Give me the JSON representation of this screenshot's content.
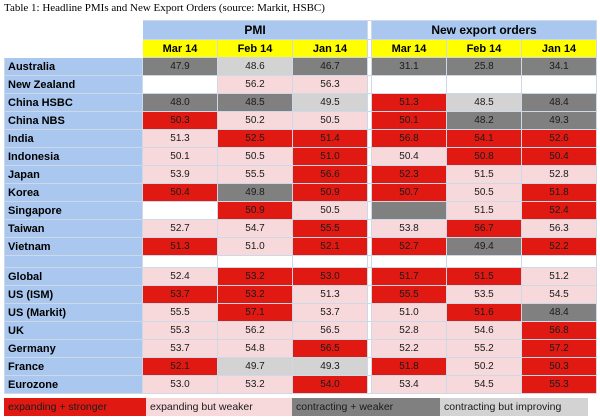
{
  "caption": "Table 1: Headline PMIs and New Export Orders (source: Markit, HSBC)",
  "groups": {
    "pmi": "PMI",
    "exports": "New export orders"
  },
  "columns": [
    "Mar 14",
    "Feb 14",
    "Jan 14",
    "Mar 14",
    "Feb 14",
    "Jan 14"
  ],
  "colors": {
    "expanding_stronger": "#e01a12",
    "expanding_weaker": "#f7d9dc",
    "contracting_weaker": "#808080",
    "contracting_improving": "#d3d3d3",
    "header_blue": "#a9c7ef",
    "header_yellow": "#ffff00"
  },
  "rows": [
    {
      "name": "Australia",
      "values": [
        "47.9",
        "48.6",
        "46.7",
        "31.1",
        "25.8",
        "34.1"
      ],
      "styles": [
        "cs",
        "ci",
        "cs",
        "cs",
        "cs",
        "cs"
      ]
    },
    {
      "name": "New Zealand",
      "values": [
        "",
        "56.2",
        "56.3",
        "",
        "",
        ""
      ],
      "styles": [
        "na",
        "ew",
        "ew",
        "na",
        "na",
        "na"
      ]
    },
    {
      "name": "China HSBC",
      "values": [
        "48.0",
        "48.5",
        "49.5",
        "51.3",
        "48.5",
        "48.4"
      ],
      "styles": [
        "cs",
        "cs",
        "ci",
        "es",
        "ci",
        "cs"
      ]
    },
    {
      "name": "China NBS",
      "values": [
        "50.3",
        "50.2",
        "50.5",
        "50.1",
        "48.2",
        "49.3"
      ],
      "styles": [
        "es",
        "ew",
        "ew",
        "es",
        "cs",
        "cs"
      ]
    },
    {
      "name": "India",
      "values": [
        "51.3",
        "52.5",
        "51.4",
        "56.8",
        "54.1",
        "52.6"
      ],
      "styles": [
        "ew",
        "es",
        "es",
        "es",
        "es",
        "es"
      ]
    },
    {
      "name": "Indonesia",
      "values": [
        "50.1",
        "50.5",
        "51.0",
        "50.4",
        "50.8",
        "50.4"
      ],
      "styles": [
        "ew",
        "ew",
        "es",
        "ew",
        "es",
        "es"
      ]
    },
    {
      "name": "Japan",
      "values": [
        "53.9",
        "55.5",
        "56.6",
        "52.3",
        "51.5",
        "52.8"
      ],
      "styles": [
        "ew",
        "ew",
        "es",
        "es",
        "ew",
        "ew"
      ]
    },
    {
      "name": "Korea",
      "values": [
        "50.4",
        "49.8",
        "50.9",
        "50.7",
        "50.5",
        "51.8"
      ],
      "styles": [
        "es",
        "cs",
        "es",
        "es",
        "ew",
        "es"
      ]
    },
    {
      "name": "Singapore",
      "values": [
        "",
        "50.9",
        "50.5",
        "",
        "51.5",
        "52.4"
      ],
      "styles": [
        "na",
        "es",
        "ew",
        "cs",
        "ew",
        "es"
      ]
    },
    {
      "name": "Taiwan",
      "values": [
        "52.7",
        "54.7",
        "55.5",
        "53.8",
        "56.7",
        "56.3"
      ],
      "styles": [
        "ew",
        "ew",
        "es",
        "ew",
        "es",
        "ew"
      ]
    },
    {
      "name": "Vietnam",
      "values": [
        "51.3",
        "51.0",
        "52.1",
        "52.7",
        "49.4",
        "52.2"
      ],
      "styles": [
        "es",
        "ew",
        "es",
        "es",
        "cs",
        "es"
      ]
    },
    {
      "name": "",
      "values": [
        "",
        "",
        "",
        "",
        "",
        ""
      ],
      "styles": [
        "na",
        "na",
        "na",
        "na",
        "na",
        "na"
      ],
      "spacer": true
    },
    {
      "name": "Global",
      "values": [
        "52.4",
        "53.2",
        "53.0",
        "51.7",
        "51.5",
        "51.2"
      ],
      "styles": [
        "ew",
        "es",
        "es",
        "es",
        "es",
        "ew"
      ]
    },
    {
      "name": "US (ISM)",
      "values": [
        "53.7",
        "53.2",
        "51.3",
        "55.5",
        "53.5",
        "54.5"
      ],
      "styles": [
        "es",
        "es",
        "ew",
        "es",
        "ew",
        "ew"
      ]
    },
    {
      "name": "US (Markit)",
      "values": [
        "55.5",
        "57.1",
        "53.7",
        "51.0",
        "51.6",
        "48.4"
      ],
      "styles": [
        "ew",
        "es",
        "ew",
        "ew",
        "es",
        "cs"
      ]
    },
    {
      "name": "UK",
      "values": [
        "55.3",
        "56.2",
        "56.5",
        "52.8",
        "54.6",
        "56.8"
      ],
      "styles": [
        "ew",
        "ew",
        "ew",
        "ew",
        "ew",
        "es"
      ]
    },
    {
      "name": "Germany",
      "values": [
        "53.7",
        "54.8",
        "56.5",
        "52.2",
        "55.2",
        "57.2"
      ],
      "styles": [
        "ew",
        "ew",
        "es",
        "ew",
        "ew",
        "es"
      ]
    },
    {
      "name": "France",
      "values": [
        "52.1",
        "49.7",
        "49.3",
        "51.8",
        "50.2",
        "50.3"
      ],
      "styles": [
        "es",
        "ci",
        "ci",
        "es",
        "ew",
        "es"
      ]
    },
    {
      "name": "Eurozone",
      "values": [
        "53.0",
        "53.2",
        "54.0",
        "53.4",
        "54.5",
        "55.3"
      ],
      "styles": [
        "ew",
        "ew",
        "es",
        "ew",
        "ew",
        "es"
      ]
    }
  ],
  "legend": [
    {
      "label": "expanding + stronger",
      "style": "es"
    },
    {
      "label": "expanding but weaker",
      "style": "ew"
    },
    {
      "label": "contracting + weaker",
      "style": "cs"
    },
    {
      "label": "contracting but improving",
      "style": "ci"
    }
  ]
}
